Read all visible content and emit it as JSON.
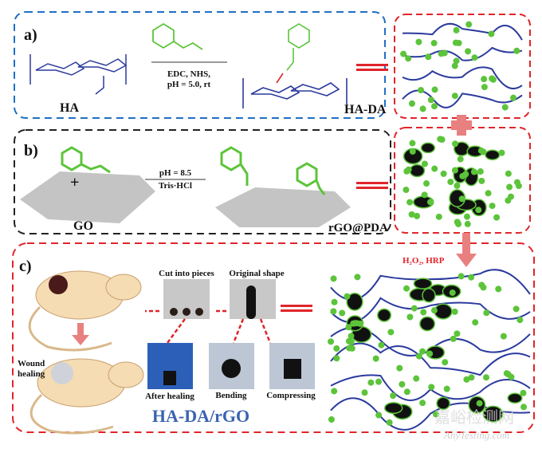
{
  "panel_a": {
    "label": "a)",
    "reactant": "HA",
    "reagent_line1": "EDC, NHS,",
    "reagent_line2": "pH = 5.0, rt",
    "product": "HA-DA",
    "frame_color": "#1f6fc4"
  },
  "panel_b": {
    "label": "b)",
    "reactant": "GO",
    "reagent_line1": "pH = 8.5",
    "reagent_line2": "Tris·HCl",
    "product": "rGO@PDA",
    "frame_color": "#222222"
  },
  "panel_c": {
    "label": "c)",
    "crosslink_condition": "H₂O₂, HRP",
    "photo_labels": {
      "cut": "Cut into pieces",
      "original": "Original shape",
      "after_healing": "After healing",
      "bending": "Bending",
      "compressing": "Compressing"
    },
    "wound_label_line1": "Wound",
    "wound_label_line2": "healing",
    "hydrogel_name": "HA-DA/rGO",
    "frame_color": "#e0252b"
  },
  "watermark": {
    "cn": "嘉峪检测网",
    "en": "AnyTesting.com"
  },
  "colors": {
    "polymer": "#2b3a9e",
    "dopamine": "#5cc43a",
    "oxygen": "#e0252b",
    "carbon": "#111111",
    "arrow_pink": "#e98080"
  }
}
